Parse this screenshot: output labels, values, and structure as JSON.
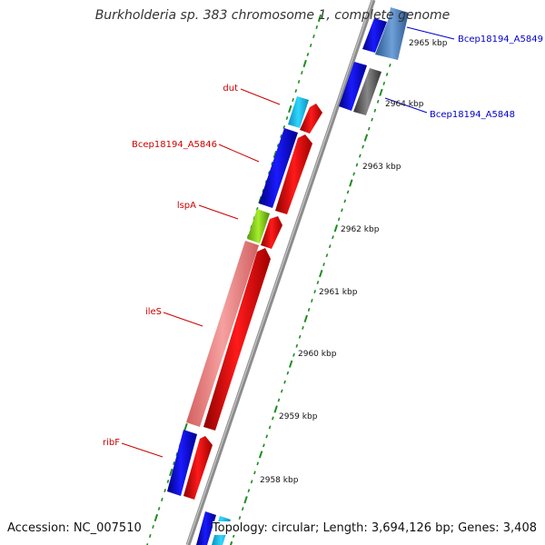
{
  "title": "Burkholderia sp. 383 chromosome 1, complete genome",
  "accession": "Accession: NC_007510",
  "topology": "Topology: circular; Length: 3,694,126 bp; Genes: 3,408",
  "colors": {
    "backbone": "#8c8c8c",
    "tick": "#1e8c1e",
    "label_red": "#cc0000",
    "label_blue": "#0000cc",
    "gene_blue": "#1010e0",
    "gene_red": "#e80000",
    "gene_cyan": "#1ec8f0",
    "gene_lightgreen": "#99dd22",
    "gene_pink": "#f08888",
    "gene_gray": "#555555",
    "gene_steelblue": "#4a7fbf"
  },
  "ruler_labels": [
    {
      "text": "2965 kbp",
      "kbp": 2965
    },
    {
      "text": "2964 kbp",
      "kbp": 2964
    },
    {
      "text": "2963 kbp",
      "kbp": 2963
    },
    {
      "text": "2962 kbp",
      "kbp": 2962
    },
    {
      "text": "2961 kbp",
      "kbp": 2961
    },
    {
      "text": "2960 kbp",
      "kbp": 2960
    },
    {
      "text": "2959 kbp",
      "kbp": 2959
    },
    {
      "text": "2958 kbp",
      "kbp": 2958
    }
  ],
  "gene_labels": [
    {
      "text": "dut",
      "color": "red"
    },
    {
      "text": "Bcep18194_A5846",
      "color": "red"
    },
    {
      "text": "lspA",
      "color": "red"
    },
    {
      "text": "ileS",
      "color": "red"
    },
    {
      "text": "ribF",
      "color": "red"
    },
    {
      "text": "Bcep18194_A5849",
      "color": "blue"
    },
    {
      "text": "Bcep18194_A5848",
      "color": "blue"
    }
  ]
}
